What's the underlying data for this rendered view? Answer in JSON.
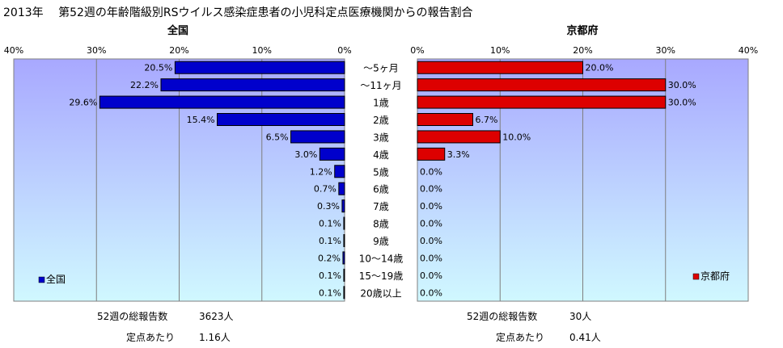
{
  "title": "2013年　 第52週の年齢階級別RSウイルス感染症患者の小児科定点医療機関からの報告割合",
  "colors": {
    "left_bar": "#0000cc",
    "right_bar": "#dd0000",
    "plot_top": "#a8a8ff",
    "plot_bottom": "#d0f8ff",
    "grid": "#7f7f7f"
  },
  "chart_data": [
    {
      "type": "bar",
      "orientation": "horizontal",
      "direction": "right-to-left",
      "title": "全国",
      "categories": [
        "～5ヶ月",
        "～11ヶ月",
        "1歳",
        "2歳",
        "3歳",
        "4歳",
        "5歳",
        "6歳",
        "7歳",
        "8歳",
        "9歳",
        "10～14歳",
        "15～19歳",
        "20歳以上"
      ],
      "values": [
        20.5,
        22.2,
        29.6,
        15.4,
        6.5,
        3.0,
        1.2,
        0.7,
        0.3,
        0.1,
        0.1,
        0.2,
        0.1,
        0.1
      ],
      "value_labels": [
        "20.5%",
        "22.2%",
        "29.6%",
        "15.4%",
        "6.5%",
        "3.0%",
        "1.2%",
        "0.7%",
        "0.3%",
        "0.1%",
        "0.1%",
        "0.2%",
        "0.1%",
        "0.1%"
      ],
      "xlim": [
        0,
        40
      ],
      "ticks": [
        "40%",
        "30%",
        "20%",
        "10%",
        "0%"
      ],
      "legend": "全国",
      "legend_position": "bottom-left",
      "grid": true
    },
    {
      "type": "bar",
      "orientation": "horizontal",
      "direction": "left-to-right",
      "title": "京都府",
      "categories": [
        "～5ヶ月",
        "～11ヶ月",
        "1歳",
        "2歳",
        "3歳",
        "4歳",
        "5歳",
        "6歳",
        "7歳",
        "8歳",
        "9歳",
        "10～14歳",
        "15～19歳",
        "20歳以上"
      ],
      "values": [
        20.0,
        30.0,
        30.0,
        6.7,
        10.0,
        3.3,
        0.0,
        0.0,
        0.0,
        0.0,
        0.0,
        0.0,
        0.0,
        0.0
      ],
      "value_labels": [
        "20.0%",
        "30.0%",
        "30.0%",
        "6.7%",
        "10.0%",
        "3.3%",
        "0.0%",
        "0.0%",
        "0.0%",
        "0.0%",
        "0.0%",
        "0.0%",
        "0.0%",
        "0.0%"
      ],
      "xlim": [
        0,
        40
      ],
      "ticks": [
        "0%",
        "10%",
        "20%",
        "30%",
        "40%"
      ],
      "legend": "京都府",
      "legend_position": "bottom-right",
      "grid": true
    }
  ],
  "stats": {
    "national": {
      "total_label": "52週の総報告数",
      "total_value": "3623人",
      "per_label": "定点あたり",
      "per_value": "1.16人"
    },
    "kyoto": {
      "total_label": "52週の総報告数",
      "total_value": "30人",
      "per_label": "定点あたり",
      "per_value": "0.41人"
    }
  }
}
